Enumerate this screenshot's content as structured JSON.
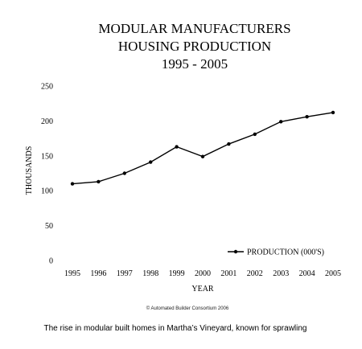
{
  "chart_data": {
    "type": "line",
    "title_lines": [
      "MODULAR MANUFACTURERS",
      "HOUSING PRODUCTION",
      "1995 - 2005"
    ],
    "xlabel": "YEAR",
    "ylabel": "THOUSANDS",
    "ylim": [
      0,
      250
    ],
    "yticks": [
      0,
      50,
      100,
      150,
      200,
      250
    ],
    "categories": [
      "1995",
      "1996",
      "1997",
      "1998",
      "1999",
      "2000",
      "2001",
      "2002",
      "2003",
      "2004",
      "2005"
    ],
    "series": [
      {
        "name": "PRODUCTION (000'S)",
        "values": [
          110,
          113,
          125,
          141,
          163,
          149,
          167,
          181,
          199,
          206,
          212
        ]
      }
    ],
    "grid": false,
    "legend_position": "bottom-right",
    "line_color": "#000000"
  },
  "credit": "© Automated Builder Consortium 2006",
  "caption": "The rise in modular built homes in Martha’s Vineyard, known for sprawling"
}
